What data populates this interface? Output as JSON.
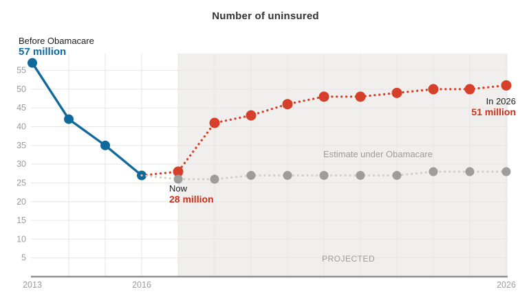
{
  "title": "Number of uninsured",
  "annotations": {
    "before_label": "Before Obamacare",
    "before_value": "57 million",
    "now_label": "Now",
    "now_value": "28 million",
    "in2026_label": "In 2026",
    "in2026_value": "51 million",
    "estimate_label": "Estimate under Obamacare",
    "projected_label": "PROJECTED"
  },
  "colors": {
    "blue": "#10699d",
    "red": "#d6402b",
    "gray_dot": "#9d9d9d",
    "gray_line": "#cdcdca",
    "shade": "#f0efed",
    "grid": "#e5e5e2",
    "axis": "#8f8f8f",
    "tick_text": "#9b9b9b"
  },
  "chart_data": {
    "type": "line",
    "title": "Number of uninsured",
    "xlabel": "",
    "ylabel": "",
    "xlim": [
      2013,
      2026
    ],
    "ylim": [
      0,
      59.5
    ],
    "grid": true,
    "yticks": [
      5,
      10,
      15,
      20,
      25,
      30,
      35,
      40,
      45,
      50,
      55
    ],
    "xticks": [
      {
        "year": 2013,
        "label": "2013"
      },
      {
        "year": 2016,
        "label": "2016"
      },
      {
        "year": 2026,
        "label": "2026"
      }
    ],
    "projected_region": {
      "from": 2017,
      "to": 2026,
      "label": "PROJECTED"
    },
    "series": [
      {
        "name": "Before Obamacare",
        "style": "solid",
        "color_key": "blue",
        "x": [
          2013,
          2014,
          2015,
          2016
        ],
        "values": [
          57,
          42,
          35,
          27
        ],
        "point_labels": {
          "2013": "57 million"
        }
      },
      {
        "name": "Projected",
        "style": "dotted",
        "color_key": "red",
        "connect_from": {
          "x": 2016,
          "value": 27
        },
        "x": [
          2017,
          2018,
          2019,
          2020,
          2021,
          2022,
          2023,
          2024,
          2025,
          2026
        ],
        "values": [
          28,
          41,
          43,
          46,
          48,
          48,
          49,
          50,
          50,
          51
        ],
        "point_labels": {
          "2017": "Now 28 million",
          "2026": "In 2026 51 million"
        }
      },
      {
        "name": "Estimate under Obamacare",
        "style": "dotted",
        "color_key": "gray",
        "connect_from": {
          "x": 2016,
          "value": 27
        },
        "x": [
          2017,
          2018,
          2019,
          2020,
          2021,
          2022,
          2023,
          2024,
          2025,
          2026
        ],
        "values": [
          26,
          26,
          27,
          27,
          27,
          27,
          27,
          28,
          28,
          28
        ]
      }
    ]
  }
}
